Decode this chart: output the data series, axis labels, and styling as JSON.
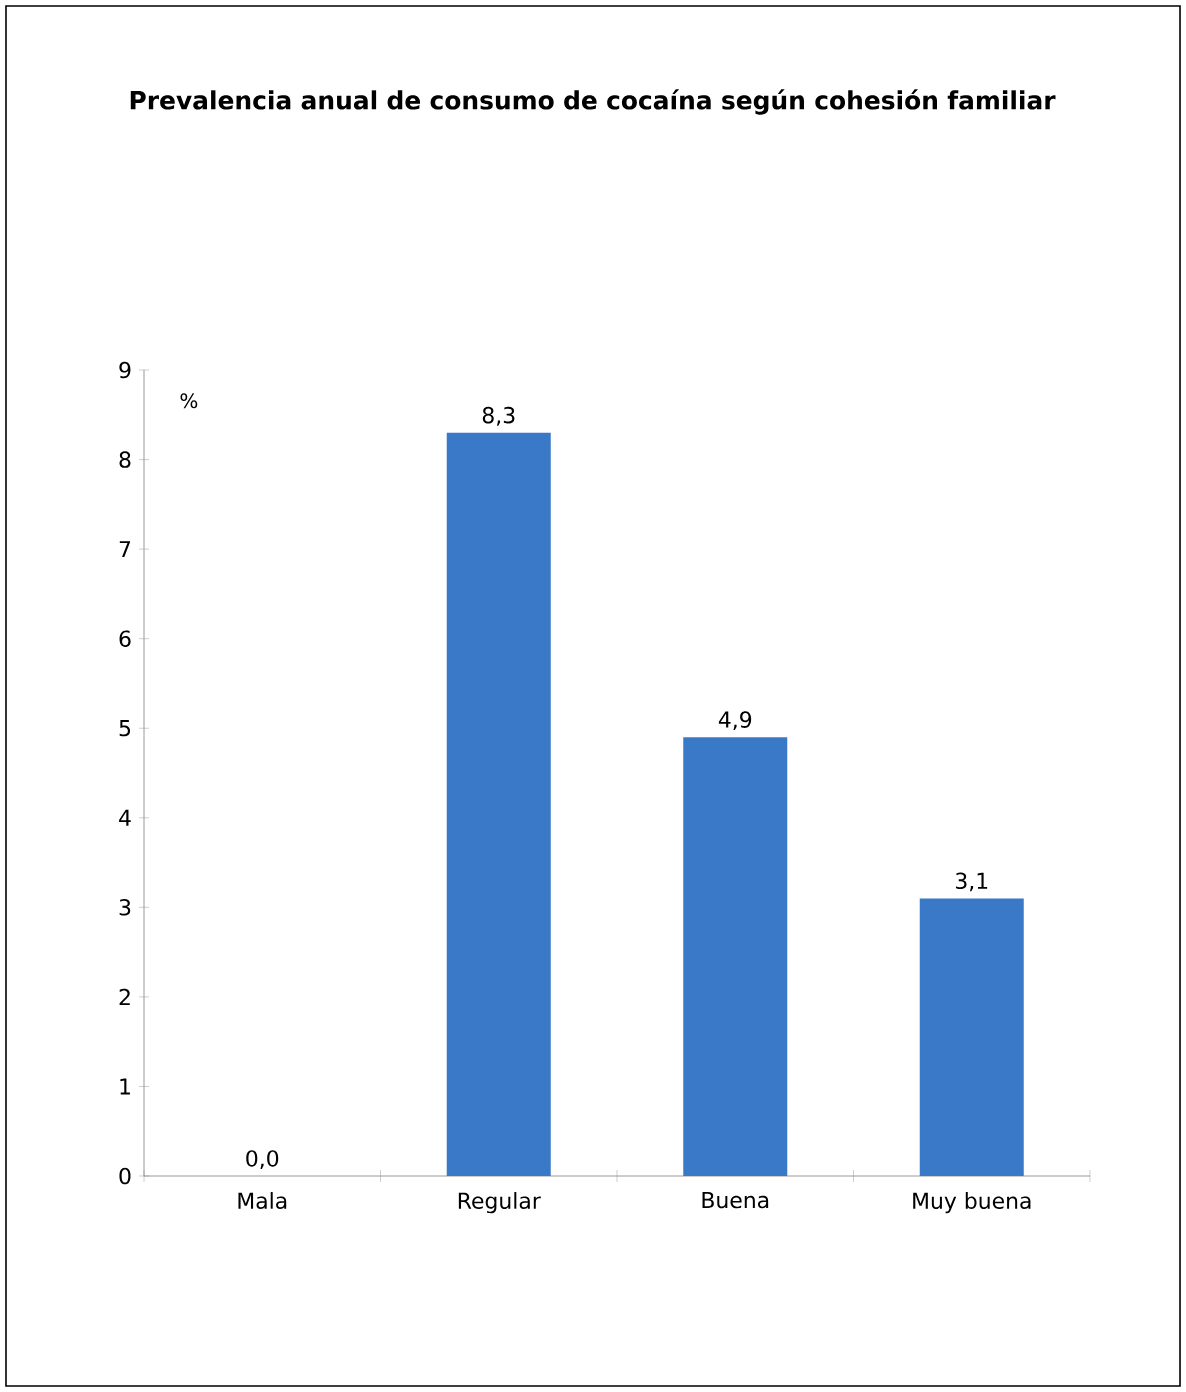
{
  "chart_data": {
    "type": "bar",
    "title": "Prevalencia anual de consumo de cocaína según cohesión familiar",
    "ylabel": "%",
    "categories": [
      "Mala",
      "Regular",
      "Buena",
      "Muy buena"
    ],
    "values": [
      0.0,
      8.3,
      4.9,
      3.1
    ],
    "value_labels": [
      "0,0",
      "8,3",
      "4,9",
      "3,1"
    ],
    "color": "#3a78c8",
    "ylim": [
      0,
      9
    ],
    "yticks": [
      0,
      1,
      2,
      3,
      4,
      5,
      6,
      7,
      8,
      9
    ],
    "grid": false
  }
}
